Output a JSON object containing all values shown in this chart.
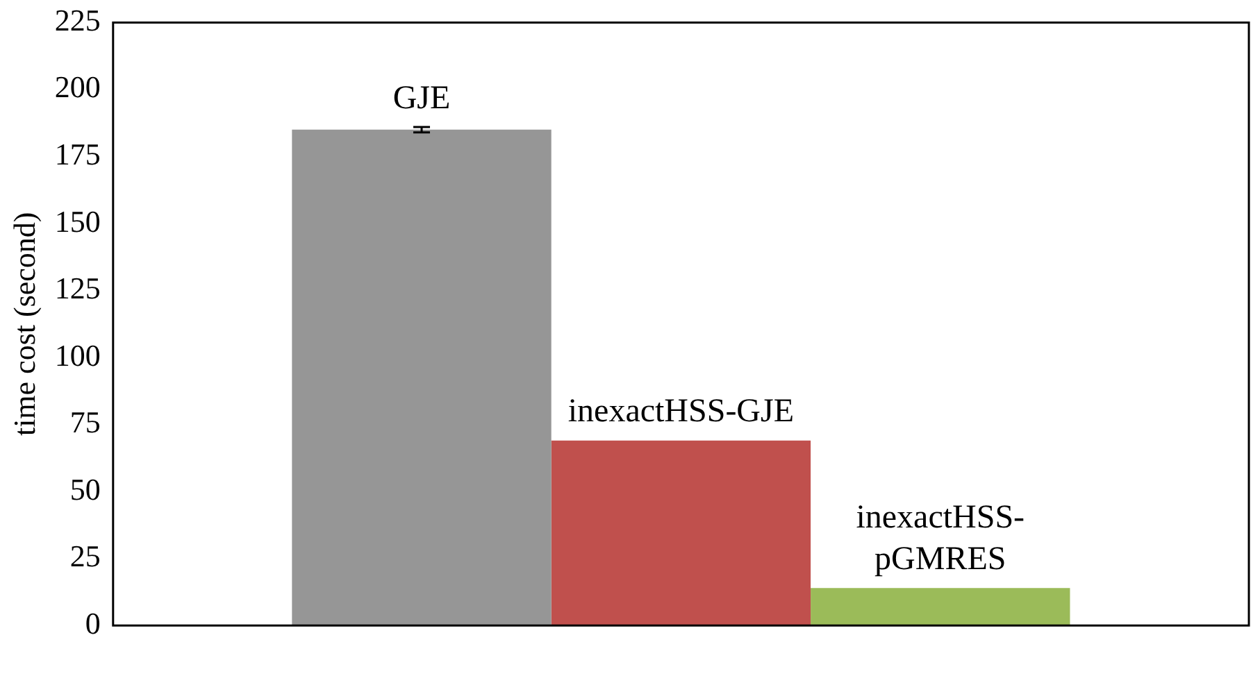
{
  "chart_data": {
    "type": "bar",
    "ylabel": "time cost (second)",
    "categories": [
      null
    ],
    "series": [
      {
        "name": "GJE",
        "color": "#969696",
        "values": [
          185
        ],
        "errors": [
          1
        ]
      },
      {
        "name": "inexactHSS-GJE",
        "color": "#c0504d",
        "values": [
          69
        ]
      },
      {
        "name": "inexactHSS-pGMRES",
        "color": "#9bbb59",
        "values": [
          14
        ]
      }
    ],
    "ylim": [
      0,
      225
    ],
    "yticks": [
      0,
      25,
      50,
      75,
      100,
      125,
      150,
      175,
      200,
      225
    ],
    "grid": false,
    "legend": false
  }
}
